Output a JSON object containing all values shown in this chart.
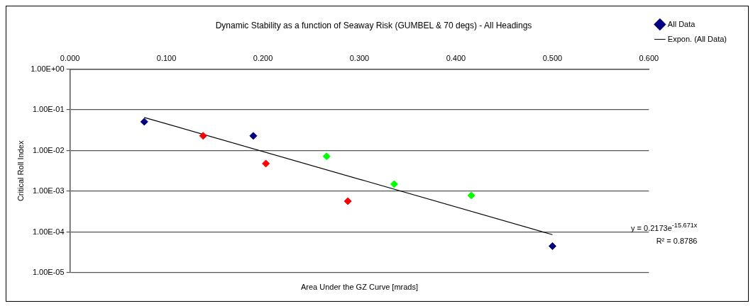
{
  "chart_data": {
    "type": "scatter",
    "title": "Dynamic Stability as a function of Seaway Risk (GUMBEL & 70 degs) - All Headings",
    "xlabel": "Area Under the GZ Curve [mrads]",
    "ylabel": "Critical Roll Index",
    "series": [
      {
        "name": "All Data",
        "color": "#000080",
        "colors": [
          "#000080",
          "#ff0000",
          "#000080",
          "#ff0000",
          "#00ff00",
          "#ff0000",
          "#00ff00",
          "#00ff00",
          "#000080"
        ],
        "x": [
          0.077,
          0.138,
          0.19,
          0.203,
          0.266,
          0.288,
          0.336,
          0.416,
          0.5
        ],
        "values": [
          0.051,
          0.023,
          0.023,
          0.0048,
          0.0072,
          0.00057,
          0.0015,
          0.00079,
          4.5e-05
        ]
      },
      {
        "name": "Expon. (All Data)",
        "type": "line",
        "color": "#000000",
        "marker": "none",
        "x": [
          0.077,
          0.5
        ],
        "values": [
          0.065,
          8.6e-05
        ]
      }
    ],
    "xlim": [
      0,
      0.6
    ],
    "xticks": [
      {
        "value": 0,
        "label": "0.000"
      },
      {
        "value": 0.1,
        "label": "0.100"
      },
      {
        "value": 0.2,
        "label": "0.200"
      },
      {
        "value": 0.3,
        "label": "0.300"
      },
      {
        "value": 0.4,
        "label": "0.400"
      },
      {
        "value": 0.5,
        "label": "0.500"
      },
      {
        "value": 0.6,
        "label": "0.600"
      }
    ],
    "ylim": [
      1e-05,
      1
    ],
    "yticks": [
      {
        "value": 1,
        "label": "1.00E+00"
      },
      {
        "value": 0.1,
        "label": "1.00E-01"
      },
      {
        "value": 0.01,
        "label": "1.00E-02"
      },
      {
        "value": 0.001,
        "label": "1.00E-03"
      },
      {
        "value": 0.0001,
        "label": "1.00E-04"
      },
      {
        "value": 1e-05,
        "label": "1.00E-05"
      }
    ],
    "log": "y",
    "grid": "y",
    "legend": "top right",
    "marker": "diamond",
    "annotations": [
      "y = 0.2173e$^{-15.671x}$",
      "R² = 0.8786"
    ]
  }
}
